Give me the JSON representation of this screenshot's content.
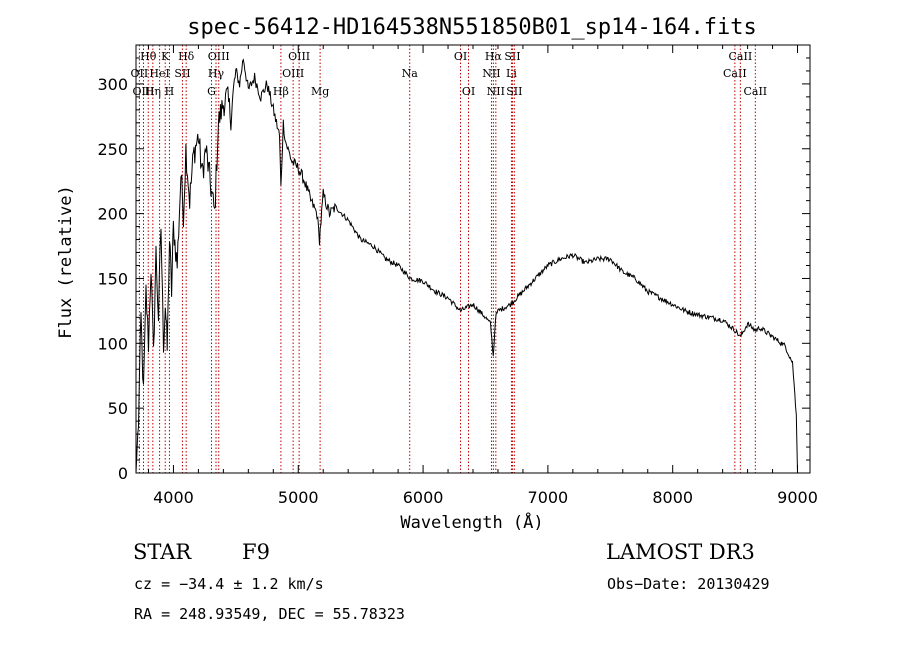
{
  "chart_data": {
    "type": "line",
    "title": "spec-56412-HD164538N551850B01_sp14-164.fits",
    "xlabel": "Wavelength (Å)",
    "ylabel": "Flux (relative)",
    "xlim": [
      3700,
      9100
    ],
    "ylim": [
      0,
      330
    ],
    "xticks": [
      4000,
      5000,
      6000,
      7000,
      8000,
      9000
    ],
    "yticks": [
      0,
      50,
      100,
      150,
      200,
      250,
      300
    ],
    "series": [
      {
        "name": "spectrum",
        "x": [
          3700,
          3720,
          3740,
          3760,
          3780,
          3800,
          3820,
          3840,
          3860,
          3880,
          3900,
          3920,
          3935,
          3950,
          3968,
          3985,
          4000,
          4030,
          4060,
          4080,
          4100,
          4130,
          4160,
          4200,
          4230,
          4260,
          4300,
          4330,
          4360,
          4400,
          4430,
          4460,
          4500,
          4530,
          4560,
          4600,
          4650,
          4700,
          4750,
          4800,
          4850,
          4861,
          4880,
          4900,
          4950,
          5000,
          5050,
          5100,
          5150,
          5170,
          5200,
          5250,
          5300,
          5400,
          5500,
          5600,
          5700,
          5800,
          5900,
          6000,
          6100,
          6200,
          6300,
          6400,
          6500,
          6540,
          6563,
          6580,
          6600,
          6700,
          6800,
          6900,
          7000,
          7100,
          7200,
          7300,
          7400,
          7500,
          7600,
          7700,
          7800,
          7900,
          8000,
          8100,
          8200,
          8300,
          8400,
          8500,
          8542,
          8600,
          8662,
          8700,
          8800,
          8900,
          8960,
          8990,
          9000
        ],
        "y": [
          0,
          40,
          120,
          60,
          140,
          100,
          160,
          90,
          170,
          120,
          190,
          100,
          130,
          95,
          180,
          140,
          190,
          160,
          230,
          200,
          250,
          210,
          245,
          260,
          230,
          250,
          220,
          200,
          270,
          285,
          290,
          275,
          310,
          300,
          320,
          295,
          305,
          290,
          300,
          280,
          260,
          220,
          270,
          255,
          240,
          235,
          225,
          210,
          200,
          180,
          215,
          200,
          205,
          195,
          180,
          175,
          165,
          160,
          150,
          148,
          140,
          135,
          125,
          130,
          120,
          115,
          90,
          120,
          125,
          130,
          140,
          150,
          160,
          165,
          168,
          162,
          165,
          165,
          155,
          150,
          140,
          135,
          130,
          125,
          122,
          120,
          118,
          110,
          105,
          115,
          110,
          112,
          105,
          98,
          85,
          45,
          0
        ]
      }
    ],
    "lines": [
      {
        "label": "OII",
        "x": 3727,
        "row": 1
      },
      {
        "label": "OIII",
        "x": 3760,
        "row": 2
      },
      {
        "label": "Hθ",
        "x": 3798,
        "row": 0
      },
      {
        "label": "Hη",
        "x": 3835,
        "row": 2
      },
      {
        "label": "HeI",
        "x": 3889,
        "row": 1
      },
      {
        "label": "K",
        "x": 3934,
        "row": 0
      },
      {
        "label": "H",
        "x": 3968,
        "row": 2
      },
      {
        "label": "SII",
        "x": 4072,
        "row": 1
      },
      {
        "label": "Hδ",
        "x": 4102,
        "row": 0
      },
      {
        "label": "G",
        "x": 4305,
        "row": 2
      },
      {
        "label": "Hγ",
        "x": 4341,
        "row": 1
      },
      {
        "label": "OIII",
        "x": 4363,
        "row": 0
      },
      {
        "label": "Hβ",
        "x": 4861,
        "row": 2
      },
      {
        "label": "OIII",
        "x": 4959,
        "row": 1
      },
      {
        "label": "OIII",
        "x": 5007,
        "row": 0
      },
      {
        "label": "Mg",
        "x": 5175,
        "row": 2
      },
      {
        "label": "Na",
        "x": 5893,
        "row": 1
      },
      {
        "label": "OI",
        "x": 6300,
        "row": 0
      },
      {
        "label": "OI",
        "x": 6364,
        "row": 2
      },
      {
        "label": "NII",
        "x": 6548,
        "row": 1
      },
      {
        "label": "Hα",
        "x": 6563,
        "row": 0
      },
      {
        "label": "NII",
        "x": 6583,
        "row": 2
      },
      {
        "label": "Li",
        "x": 6708,
        "row": 1
      },
      {
        "label": "SII",
        "x": 6716,
        "row": 0
      },
      {
        "label": "SII",
        "x": 6731,
        "row": 2
      },
      {
        "label": "CaII",
        "x": 8498,
        "row": 1
      },
      {
        "label": "CaII",
        "x": 8542,
        "row": 0
      },
      {
        "label": "CaII",
        "x": 8662,
        "row": 2
      }
    ]
  },
  "info": {
    "star_type": "STAR",
    "subclass": "F9",
    "survey": "LAMOST DR3",
    "cz": "cz = −34.4 ± 1.2 km/s",
    "obs_date": "Obs−Date: 20130429",
    "coords": "RA = 248.93549, DEC =  55.78323"
  }
}
